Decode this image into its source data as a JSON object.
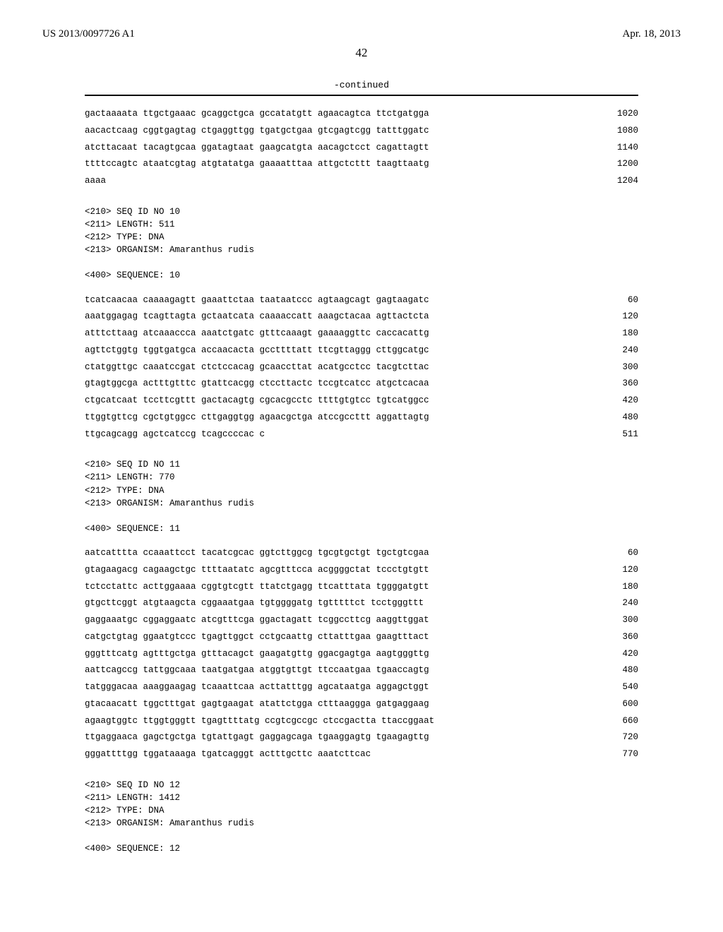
{
  "header": {
    "left": "US 2013/0097726 A1",
    "right": "Apr. 18, 2013"
  },
  "page_number": "42",
  "continued_label": "-continued",
  "block1": {
    "rows": [
      {
        "seq": "gactaaaata ttgctgaaac gcaggctgca gccatatgtt agaacagtca ttctgatgga",
        "pos": "1020"
      },
      {
        "seq": "aacactcaag cggtgagtag ctgaggttgg tgatgctgaa gtcgagtcgg tatttggatc",
        "pos": "1080"
      },
      {
        "seq": "atcttacaat tacagtgcaa ggatagtaat gaagcatgta aacagctcct cagattagtt",
        "pos": "1140"
      },
      {
        "seq": "ttttccagtc ataatcgtag atgtatatga gaaaatttaa attgctcttt taagttaatg",
        "pos": "1200"
      },
      {
        "seq": "aaaa",
        "pos": "1204"
      }
    ]
  },
  "meta10": {
    "lines": [
      "<210> SEQ ID NO 10",
      "<211> LENGTH: 511",
      "<212> TYPE: DNA",
      "<213> ORGANISM: Amaranthus rudis",
      "",
      "<400> SEQUENCE: 10"
    ]
  },
  "block10": {
    "rows": [
      {
        "seq": "tcatcaacaa caaaagagtt gaaattctaa taataatccc agtaagcagt gagtaagatc",
        "pos": "60"
      },
      {
        "seq": "aaatggagag tcagttagta gctaatcata caaaaccatt aaagctacaa agttactcta",
        "pos": "120"
      },
      {
        "seq": "atttcttaag atcaaaccca aaatctgatc gtttcaaagt gaaaaggttc caccacattg",
        "pos": "180"
      },
      {
        "seq": "agttctggtg tggtgatgca accaacacta gccttttatt ttcgttaggg cttggcatgc",
        "pos": "240"
      },
      {
        "seq": "ctatggttgc caaatccgat ctctccacag gcaaccttat acatgcctcc tacgtcttac",
        "pos": "300"
      },
      {
        "seq": "gtagtggcga actttgtttc gtattcacgg ctccttactc tccgtcatcc atgctcacaa",
        "pos": "360"
      },
      {
        "seq": "ctgcatcaat tccttcgttt gactacagtg cgcacgcctc ttttgtgtcc tgtcatggcc",
        "pos": "420"
      },
      {
        "seq": "ttggtgttcg cgctgtggcc cttgaggtgg agaacgctga atccgccttt aggattagtg",
        "pos": "480"
      },
      {
        "seq": "ttgcagcagg agctcatccg tcagccccac c",
        "pos": "511"
      }
    ]
  },
  "meta11": {
    "lines": [
      "<210> SEQ ID NO 11",
      "<211> LENGTH: 770",
      "<212> TYPE: DNA",
      "<213> ORGANISM: Amaranthus rudis",
      "",
      "<400> SEQUENCE: 11"
    ]
  },
  "block11": {
    "rows": [
      {
        "seq": "aatcatttta ccaaattcct tacatcgcac ggtcttggcg tgcgtgctgt tgctgtcgaa",
        "pos": "60"
      },
      {
        "seq": "gtagaagacg cagaagctgc ttttaatatc agcgtttcca acggggctat tccctgtgtt",
        "pos": "120"
      },
      {
        "seq": "tctcctattc acttggaaaa cggtgtcgtt ttatctgagg ttcatttata tggggatgtt",
        "pos": "180"
      },
      {
        "seq": "gtgcttcggt atgtaagcta cggaaatgaa tgtggggatg tgtttttct tcctgggttt",
        "pos": "240"
      },
      {
        "seq": "gaggaaatgc cggaggaatc atcgtttcga ggactagatt tcggccttcg aaggttggat",
        "pos": "300"
      },
      {
        "seq": "catgctgtag ggaatgtccc tgagttggct cctgcaattg cttatttgaa gaagtttact",
        "pos": "360"
      },
      {
        "seq": "gggtttcatg agtttgctga gtttacagct gaagatgttg ggacgagtga aagtgggttg",
        "pos": "420"
      },
      {
        "seq": "aattcagccg tattggcaaa taatgatgaa atggtgttgt ttccaatgaa tgaaccagtg",
        "pos": "480"
      },
      {
        "seq": "tatgggacaa aaaggaagag tcaaattcaa acttatttgg agcataatga aggagctggt",
        "pos": "540"
      },
      {
        "seq": "gtacaacatt tggctttgat gagtgaagat atattctgga ctttaaggga gatgaggaag",
        "pos": "600"
      },
      {
        "seq": "agaagtggtc ttggtgggtt tgagttttatg ccgtcgccgc ctccgactta ttaccggaat",
        "pos": "660"
      },
      {
        "seq": "ttgaggaaca gagctgctga tgtattgagt gaggagcaga tgaaggagtg tgaagagttg",
        "pos": "720"
      },
      {
        "seq": "gggattttgg tggataaaga tgatcagggt actttgcttc aaatcttcac",
        "pos": "770"
      }
    ]
  },
  "meta12": {
    "lines": [
      "<210> SEQ ID NO 12",
      "<211> LENGTH: 1412",
      "<212> TYPE: DNA",
      "<213> ORGANISM: Amaranthus rudis",
      "",
      "<400> SEQUENCE: 12"
    ]
  }
}
